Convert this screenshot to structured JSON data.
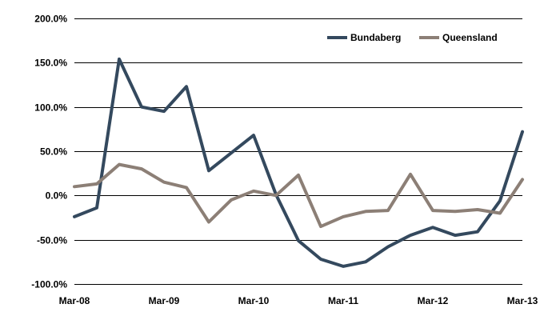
{
  "chart_data": {
    "type": "line",
    "title": "",
    "xlabel": "",
    "ylabel": "",
    "x_tick_labels": [
      "Mar-08",
      "Mar-09",
      "Mar-10",
      "Mar-11",
      "Mar-12",
      "Mar-13"
    ],
    "y_tick_labels": [
      "-100.0%",
      "-50.0%",
      "0.0%",
      "50.0%",
      "100.0%",
      "150.0%",
      "200.0%"
    ],
    "ylim": [
      -100,
      200
    ],
    "y_unit": "%",
    "grid": true,
    "legend_position": "top-right",
    "x": [
      "Mar-08",
      "Jun-08",
      "Sep-08",
      "Dec-08",
      "Mar-09",
      "Jun-09",
      "Sep-09",
      "Dec-09",
      "Mar-10",
      "Jun-10",
      "Sep-10",
      "Dec-10",
      "Mar-11",
      "Jun-11",
      "Sep-11",
      "Dec-11",
      "Mar-12",
      "Jun-12",
      "Sep-12",
      "Dec-12",
      "Mar-13"
    ],
    "series": [
      {
        "name": "Bundaberg",
        "color": "#34495e",
        "values": [
          -24,
          -14,
          154,
          100,
          95,
          123,
          28,
          48,
          68,
          1,
          -51,
          -72,
          -80,
          -75,
          -58,
          -45,
          -36,
          -45,
          -41,
          -6,
          72
        ]
      },
      {
        "name": "Queensland",
        "color": "#8c7f76",
        "values": [
          10,
          13,
          35,
          30,
          15,
          9,
          -30,
          -5,
          5,
          0,
          23,
          -35,
          -24,
          -18,
          -17,
          24,
          -17,
          -18,
          -16,
          -20,
          18
        ]
      }
    ]
  }
}
